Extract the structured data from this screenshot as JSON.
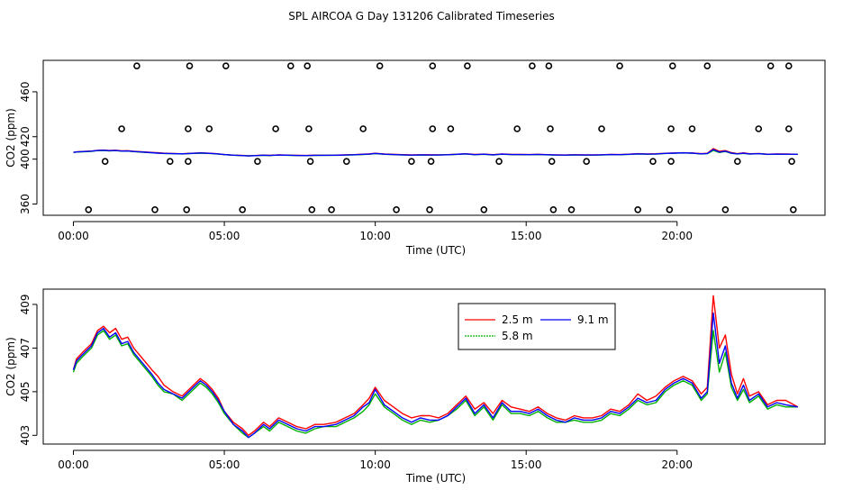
{
  "chart_data": [
    {
      "type": "scatter",
      "title": "SPL AIRCOA G  Day 131206  Calibrated Timeseries",
      "xlabel": "Time (UTC)",
      "ylabel": "CO2 (ppm)",
      "xlim": [
        -1.0,
        24.9
      ],
      "ylim": [
        350,
        488
      ],
      "xticks": [
        0,
        5,
        10,
        15,
        20
      ],
      "xtick_labels": [
        "00:00",
        "05:00",
        "10:00",
        "15:00",
        "20:00"
      ],
      "yticks": [
        360,
        400,
        420,
        460
      ],
      "ytick_labels": [
        "360",
        "400",
        "420",
        "460"
      ],
      "calibration_points": {
        "x": [
          2.1,
          3.85,
          5.05,
          7.2,
          7.75,
          10.15,
          11.9,
          13.05,
          15.2,
          15.75,
          18.1,
          19.85,
          21.0,
          23.1,
          23.7,
          1.6,
          3.8,
          4.5,
          6.7,
          7.8,
          9.6,
          11.9,
          12.5,
          14.7,
          15.8,
          17.5,
          19.8,
          20.5,
          22.7,
          23.7,
          1.05,
          3.2,
          3.8,
          6.1,
          7.85,
          9.05,
          11.2,
          11.85,
          14.1,
          15.85,
          17.0,
          19.2,
          19.8,
          22.0,
          23.8,
          0.5,
          2.7,
          3.75,
          5.6,
          7.9,
          8.55,
          10.7,
          11.8,
          13.6,
          15.9,
          16.5,
          18.7,
          19.75,
          21.6,
          23.85
        ],
        "y": [
          483,
          483,
          483,
          483,
          483,
          483,
          483,
          483,
          483,
          483,
          483,
          483,
          483,
          483,
          483,
          427,
          427,
          427,
          427,
          427,
          427,
          427,
          427,
          427,
          427,
          427,
          427,
          427,
          427,
          427,
          398,
          398,
          398,
          398,
          398,
          398,
          398,
          398,
          398,
          398,
          398,
          398,
          398,
          398,
          398,
          355,
          355,
          355,
          355,
          355,
          355,
          355,
          355,
          355,
          355,
          355,
          355,
          355,
          355,
          355
        ]
      },
      "series": [
        {
          "name": "2.5 m",
          "color": "#ff0000"
        },
        {
          "name": "5.8 m",
          "color": "#00b000"
        },
        {
          "name": "9.1 m",
          "color": "#0000ff"
        }
      ]
    },
    {
      "type": "line",
      "title": "",
      "xlabel": "Time (UTC)",
      "ylabel": "CO2 (ppm)",
      "xlim": [
        -1.0,
        24.9
      ],
      "ylim": [
        402.6,
        409.7
      ],
      "xticks": [
        0,
        5,
        10,
        15,
        20
      ],
      "xtick_labels": [
        "00:00",
        "05:00",
        "10:00",
        "15:00",
        "20:00"
      ],
      "yticks": [
        403,
        405,
        407,
        409
      ],
      "ytick_labels": [
        "403",
        "405",
        "407",
        "409"
      ],
      "legend": "top-center",
      "x": [
        0,
        0.1,
        0.3,
        0.6,
        0.8,
        1.0,
        1.2,
        1.4,
        1.6,
        1.8,
        2.0,
        2.3,
        2.6,
        2.8,
        3.0,
        3.3,
        3.6,
        3.9,
        4.2,
        4.4,
        4.6,
        4.8,
        5.0,
        5.3,
        5.6,
        5.8,
        6.0,
        6.3,
        6.5,
        6.8,
        7.1,
        7.4,
        7.7,
        8.0,
        8.3,
        8.7,
        9.0,
        9.3,
        9.6,
        9.8,
        10.0,
        10.3,
        10.6,
        10.9,
        11.2,
        11.5,
        11.8,
        12.1,
        12.4,
        12.7,
        13.0,
        13.3,
        13.6,
        13.9,
        14.2,
        14.5,
        14.8,
        15.1,
        15.4,
        15.7,
        16.0,
        16.3,
        16.6,
        16.9,
        17.2,
        17.5,
        17.8,
        18.1,
        18.4,
        18.7,
        19.0,
        19.3,
        19.6,
        19.9,
        20.2,
        20.5,
        20.8,
        21.0,
        21.2,
        21.4,
        21.6,
        21.8,
        22.0,
        22.2,
        22.4,
        22.7,
        23.0,
        23.3,
        23.6,
        24.0
      ],
      "series": [
        {
          "name": "2.5 m",
          "color": "#ff0000",
          "values": [
            406.0,
            406.5,
            406.8,
            407.2,
            407.8,
            408.0,
            407.7,
            407.9,
            407.4,
            407.5,
            407.0,
            406.5,
            406.0,
            405.7,
            405.3,
            405.0,
            404.8,
            405.2,
            405.6,
            405.4,
            405.1,
            404.7,
            404.1,
            403.6,
            403.3,
            403.0,
            403.2,
            403.6,
            403.4,
            403.8,
            403.6,
            403.4,
            403.3,
            403.5,
            403.5,
            403.6,
            403.8,
            404.0,
            404.4,
            404.7,
            405.2,
            404.6,
            404.3,
            404.0,
            403.8,
            403.9,
            403.9,
            403.8,
            404.0,
            404.4,
            404.8,
            404.2,
            404.5,
            404.0,
            404.6,
            404.3,
            404.2,
            404.1,
            404.3,
            404.0,
            403.8,
            403.7,
            403.9,
            403.8,
            403.8,
            403.9,
            404.2,
            404.1,
            404.4,
            404.9,
            404.6,
            404.8,
            405.2,
            405.5,
            405.7,
            405.5,
            404.9,
            405.2,
            409.4,
            407.0,
            407.6,
            405.8,
            404.9,
            405.6,
            404.8,
            405.0,
            404.4,
            404.6,
            404.6,
            404.3
          ]
        },
        {
          "name": "5.8 m",
          "color": "#00b000",
          "values": [
            405.9,
            406.3,
            406.6,
            407.0,
            407.6,
            407.8,
            407.4,
            407.6,
            407.1,
            407.2,
            406.7,
            406.2,
            405.7,
            405.3,
            405.0,
            404.9,
            404.6,
            405.0,
            405.4,
            405.2,
            404.9,
            404.5,
            404.0,
            403.5,
            403.1,
            402.9,
            403.1,
            403.4,
            403.2,
            403.6,
            403.4,
            403.2,
            403.1,
            403.3,
            403.4,
            403.4,
            403.6,
            403.8,
            404.1,
            404.4,
            404.9,
            404.3,
            404.0,
            403.7,
            403.5,
            403.7,
            403.6,
            403.7,
            403.9,
            404.2,
            404.6,
            403.9,
            404.3,
            403.7,
            404.4,
            404.0,
            404.0,
            403.9,
            404.1,
            403.8,
            403.6,
            403.6,
            403.7,
            403.6,
            403.6,
            403.7,
            404.0,
            403.9,
            404.2,
            404.6,
            404.4,
            404.5,
            405.0,
            405.3,
            405.5,
            405.3,
            404.6,
            404.9,
            407.8,
            405.9,
            406.8,
            405.2,
            404.6,
            405.1,
            404.5,
            404.8,
            404.2,
            404.4,
            404.3,
            404.3
          ]
        },
        {
          "name": "9.1 m",
          "color": "#0000ff",
          "values": [
            406.0,
            406.4,
            406.7,
            407.1,
            407.7,
            407.9,
            407.5,
            407.7,
            407.2,
            407.3,
            406.8,
            406.3,
            405.8,
            405.4,
            405.1,
            404.9,
            404.7,
            405.1,
            405.5,
            405.3,
            405.0,
            404.6,
            404.1,
            403.5,
            403.2,
            402.9,
            403.1,
            403.5,
            403.3,
            403.7,
            403.5,
            403.3,
            403.2,
            403.4,
            403.4,
            403.5,
            403.7,
            403.9,
            404.3,
            404.5,
            405.1,
            404.4,
            404.1,
            403.8,
            403.6,
            403.8,
            403.7,
            403.7,
            403.9,
            404.3,
            404.7,
            404.0,
            404.4,
            403.8,
            404.5,
            404.1,
            404.1,
            404.0,
            404.2,
            403.9,
            403.7,
            403.6,
            403.8,
            403.7,
            403.7,
            403.8,
            404.1,
            404.0,
            404.3,
            404.7,
            404.5,
            404.6,
            405.1,
            405.4,
            405.6,
            405.4,
            404.7,
            405.0,
            408.6,
            406.3,
            407.1,
            405.4,
            404.7,
            405.3,
            404.6,
            404.9,
            404.3,
            404.5,
            404.4,
            404.3
          ]
        }
      ]
    }
  ]
}
